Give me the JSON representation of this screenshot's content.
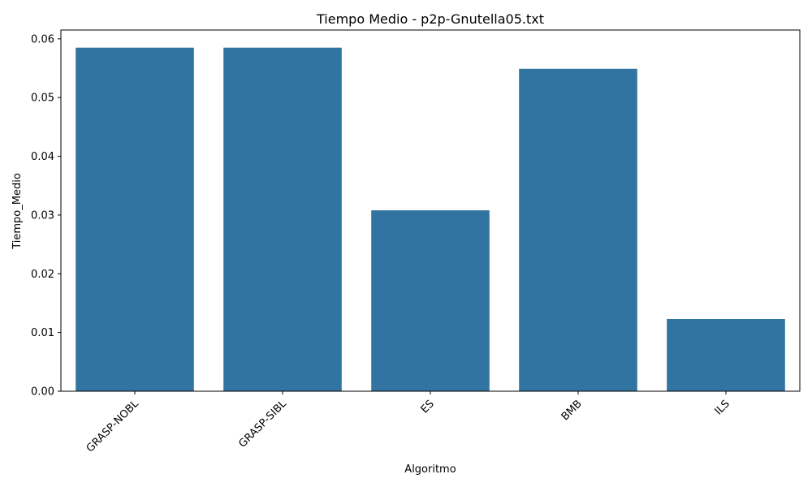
{
  "chart_data": {
    "type": "bar",
    "title": "Tiempo Medio - p2p-Gnutella05.txt",
    "xlabel": "Algoritmo",
    "ylabel": "Tiempo_Medio",
    "categories": [
      "GRASP-NOBL",
      "GRASP-SIBL",
      "ES",
      "BMB",
      "ILS"
    ],
    "values": [
      0.0585,
      0.0585,
      0.0308,
      0.0549,
      0.0123
    ],
    "ylim": [
      0,
      0.0615
    ],
    "yticks": [
      "0.00",
      "0.01",
      "0.02",
      "0.03",
      "0.04",
      "0.05",
      "0.06"
    ],
    "grid": false,
    "bar_color": "#3274a1",
    "xtick_rotation": "45deg"
  }
}
